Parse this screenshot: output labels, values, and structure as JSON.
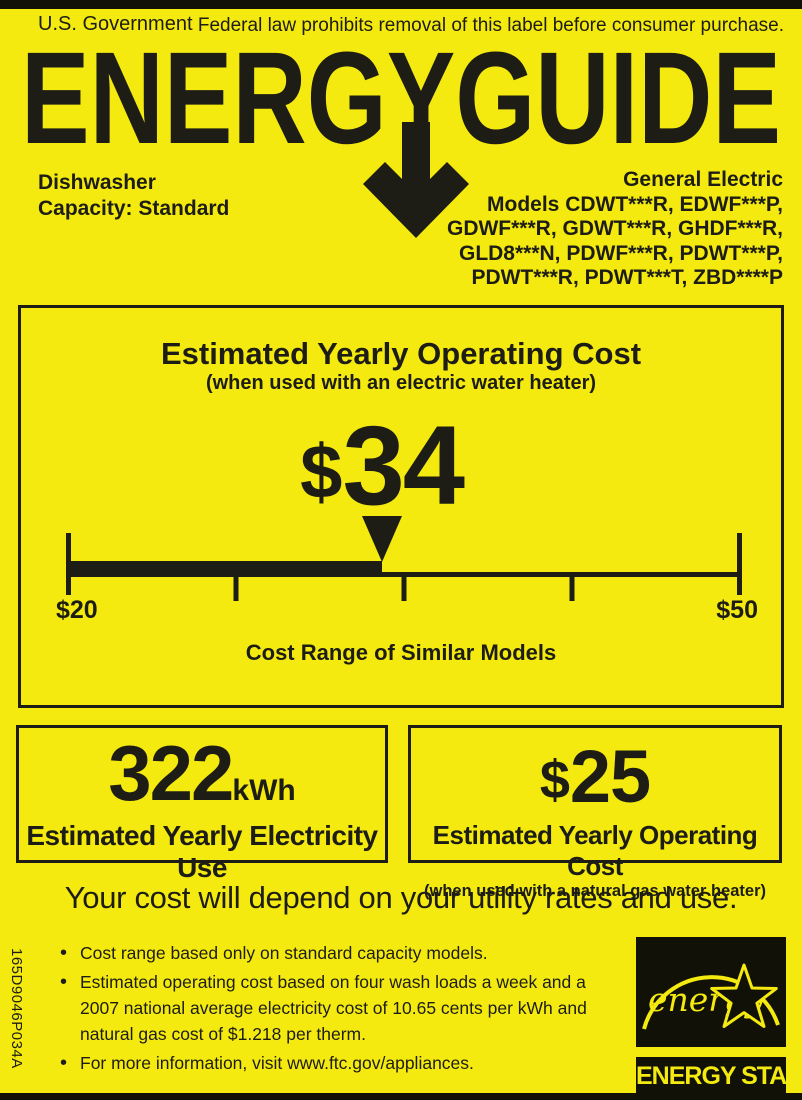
{
  "colors": {
    "label_yellow": "#f4ea10",
    "ink_black": "#1d1d15"
  },
  "top": {
    "government": "U.S. Government",
    "removal_notice": "Federal law prohibits removal of this label before consumer purchase."
  },
  "logo": {
    "text": "ENERGYGUIDE"
  },
  "product": {
    "type": "Dishwasher",
    "capacity": "Capacity: Standard",
    "brand": "General Electric",
    "models_lines": [
      "Models CDWT***R, EDWF***P,",
      "GDWF***R, GDWT***R, GHDF***R,",
      "GLD8***N, PDWF***R, PDWT***P,",
      "PDWT***R, PDWT***T, ZBD****P"
    ]
  },
  "chart_data": {
    "type": "scale",
    "title": "Estimated Yearly Operating Cost",
    "subtitle": "(when used with an electric water heater)",
    "value": 34,
    "value_dollar": "$",
    "value_number": "34",
    "axis_min": 20,
    "axis_max": 50,
    "axis_min_label": "$20",
    "axis_max_label": "$50",
    "caption": "Cost Range of Similar Models"
  },
  "electricity_box": {
    "value": "322",
    "unit": "kWh",
    "label": "Estimated Yearly Electricity Use"
  },
  "gas_box": {
    "dollar": "$",
    "value": "25",
    "label": "Estimated Yearly Operating Cost",
    "sublabel": "(when used with a natural gas water heater)"
  },
  "cost_note": "Your cost will depend on your utility rates and use.",
  "bullets": [
    "Cost range based only on standard capacity models.",
    "Estimated operating cost based on four wash loads a week and a 2007 national average electricity cost of 10.65 cents per kWh and natural gas cost of $1.218 per therm.",
    "For more information, visit www.ftc.gov/appliances."
  ],
  "part_number": "165D9046P034A",
  "energy_star": {
    "script_text": "energy",
    "bar_text": "ENERGY STAR"
  }
}
